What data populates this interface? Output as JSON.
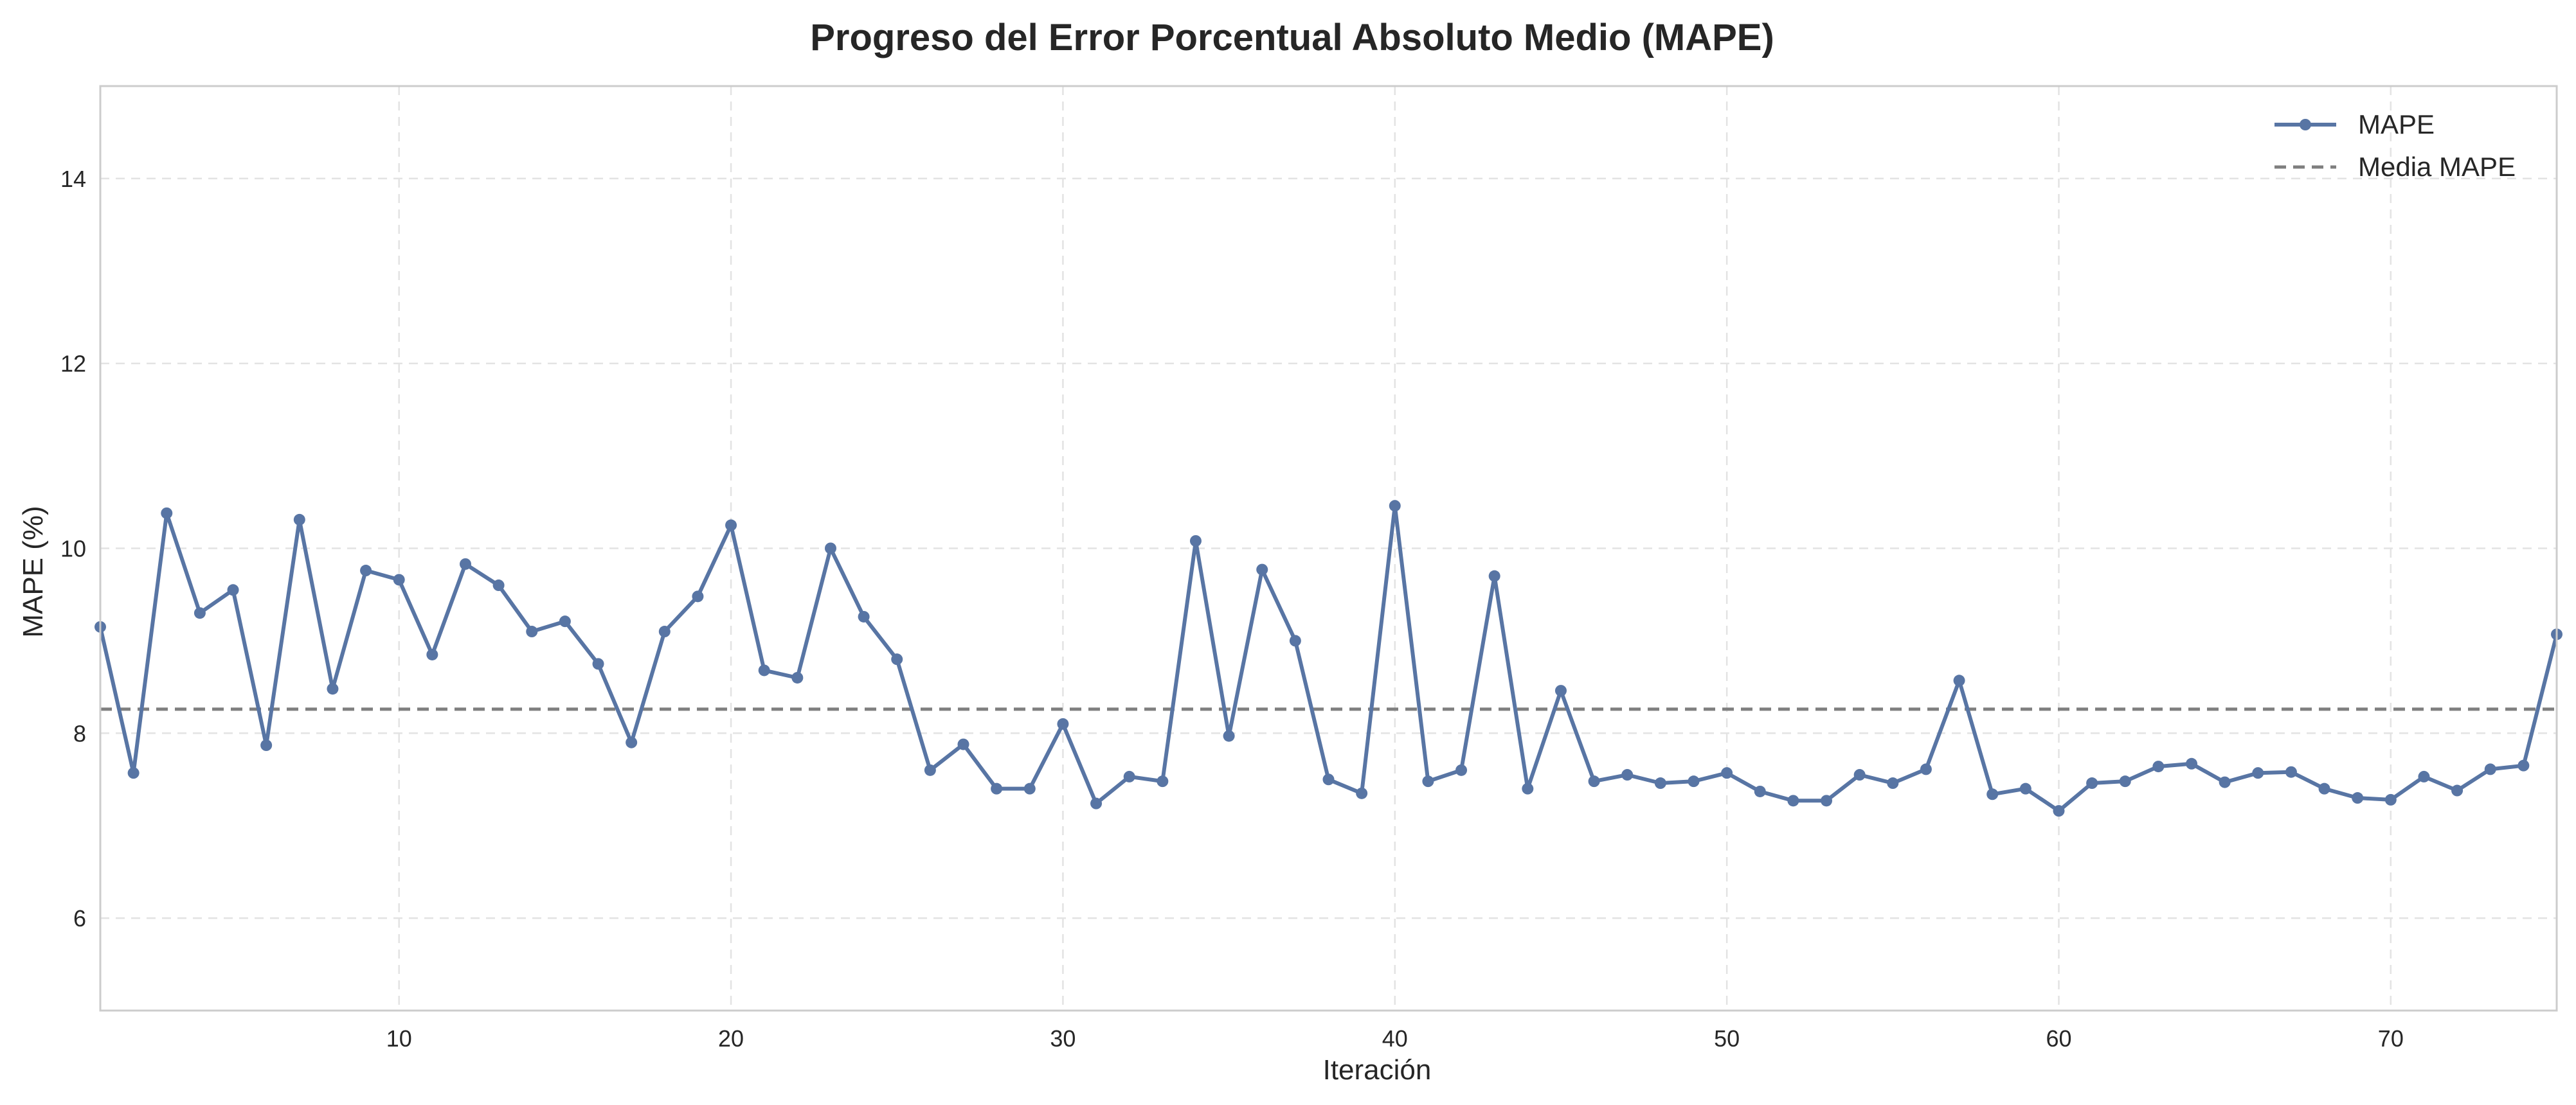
{
  "chart_data": {
    "type": "line",
    "title": "Progreso del Error Porcentual Absoluto Medio (MAPE)",
    "xlabel": "Iteración",
    "ylabel": "MAPE (%)",
    "xlim": [
      1,
      75
    ],
    "ylim": [
      5,
      15
    ],
    "xticks": [
      10,
      20,
      30,
      40,
      50,
      60,
      70
    ],
    "yticks": [
      6,
      8,
      10,
      12,
      14
    ],
    "grid": true,
    "legend_position": "top-right",
    "colors": {
      "series": "#5875a4",
      "mean_line": "#7f7f7f"
    },
    "series": [
      {
        "name": "MAPE",
        "x": [
          1,
          2,
          3,
          4,
          5,
          6,
          7,
          8,
          9,
          10,
          11,
          12,
          13,
          14,
          15,
          16,
          17,
          18,
          19,
          20,
          21,
          22,
          23,
          24,
          25,
          26,
          27,
          28,
          29,
          30,
          31,
          32,
          33,
          34,
          35,
          36,
          37,
          38,
          39,
          40,
          41,
          42,
          43,
          44,
          45,
          46,
          47,
          48,
          49,
          50,
          51,
          52,
          53,
          54,
          55,
          56,
          57,
          58,
          59,
          60,
          61,
          62,
          63,
          64,
          65,
          66,
          67,
          68,
          69,
          70,
          71,
          72,
          73,
          74,
          75
        ],
        "y": [
          9.15,
          7.57,
          10.38,
          9.3,
          9.55,
          7.87,
          10.31,
          8.48,
          9.76,
          9.66,
          8.85,
          9.83,
          9.6,
          9.1,
          9.21,
          8.75,
          7.9,
          9.1,
          9.48,
          10.25,
          8.68,
          8.6,
          10.0,
          9.26,
          8.8,
          7.6,
          7.88,
          7.4,
          7.4,
          8.1,
          7.24,
          7.53,
          7.48,
          10.08,
          7.97,
          9.77,
          9.0,
          7.5,
          7.35,
          10.46,
          7.48,
          7.6,
          9.7,
          7.4,
          8.46,
          7.48,
          7.55,
          7.46,
          7.48,
          7.57,
          7.37,
          7.27,
          7.27,
          7.55,
          7.46,
          7.61,
          8.57,
          7.34,
          7.4,
          7.16,
          7.46,
          7.48,
          7.64,
          7.67,
          7.47,
          7.57,
          7.58,
          7.4,
          7.3,
          7.28,
          7.53,
          7.38,
          7.61,
          7.65,
          9.07
        ]
      },
      {
        "name": "Media MAPE",
        "style": "dashed",
        "y": 8.26
      }
    ]
  }
}
